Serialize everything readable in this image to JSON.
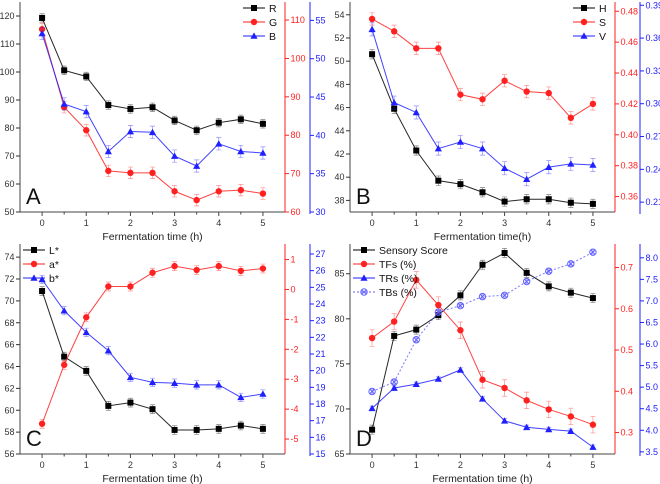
{
  "chart_data": [
    {
      "type": "line",
      "panel_label": "A",
      "xlabel": "Fermentation time (h)",
      "xlim": [
        -0.5,
        5.5
      ],
      "xticks": [
        "0",
        "1",
        "2",
        "3",
        "4",
        "5"
      ],
      "legend": "top-right",
      "axes": {
        "left": {
          "ylim": [
            50,
            125
          ],
          "ticks": [
            "50",
            "60",
            "70",
            "80",
            "90",
            "100",
            "110",
            "120"
          ],
          "color": "#333333"
        },
        "right": {
          "ylim": [
            60,
            114.7
          ],
          "ticks": [
            "60",
            "70",
            "80",
            "90",
            "100",
            "110"
          ],
          "color": "#ff2020"
        },
        "right2": {
          "ylim": [
            30,
            57.4
          ],
          "ticks": [
            "30",
            "35",
            "40",
            "45",
            "50",
            "55"
          ],
          "color": "#2020ff"
        }
      },
      "x": [
        0,
        0.5,
        1,
        1.5,
        2,
        2.5,
        3,
        3.5,
        4,
        4.5,
        5
      ],
      "series": [
        {
          "name": "R",
          "axis": "left",
          "color": "#000000",
          "marker": "square",
          "err": 1.5,
          "values": [
            119.3,
            100.6,
            98.4,
            88.2,
            86.8,
            87.4,
            82.7,
            79.2,
            81.9,
            83.1,
            81.5
          ]
        },
        {
          "name": "G",
          "axis": "right",
          "color": "#ff2020",
          "marker": "circle",
          "err": 1.5,
          "values": [
            107.6,
            87.3,
            81.3,
            70.7,
            70.2,
            70.2,
            65.4,
            63.1,
            65.4,
            65.7,
            64.8
          ]
        },
        {
          "name": "B",
          "axis": "right2",
          "color": "#2020ff",
          "marker": "triangle",
          "err": 0.8,
          "values": [
            53.3,
            44.1,
            43.1,
            37.9,
            40.5,
            40.4,
            37.3,
            36.0,
            38.9,
            37.9,
            37.7
          ]
        }
      ]
    },
    {
      "type": "line",
      "panel_label": "B",
      "xlabel": "Fermentation time(h)",
      "xlim": [
        -0.5,
        5.5
      ],
      "xticks": [
        "0",
        "1",
        "2",
        "3",
        "4",
        "5"
      ],
      "legend": "top-right",
      "axes": {
        "left": {
          "ylim": [
            37,
            55.1
          ],
          "ticks": [
            "38",
            "40",
            "42",
            "44",
            "46",
            "48",
            "50",
            "52",
            "54"
          ],
          "color": "#333333"
        },
        "right": {
          "ylim": [
            0.35,
            0.486
          ],
          "ticks": [
            "0.36",
            "0.38",
            "0.40",
            "0.42",
            "0.44",
            "0.46",
            "0.48"
          ],
          "color": "#ff2020"
        },
        "right2": {
          "ylim": [
            0.201,
            0.393
          ],
          "ticks": [
            "0.21",
            "0.24",
            "0.27",
            "0.30",
            "0.33",
            "0.36",
            "0.39"
          ],
          "color": "#2020ff"
        }
      },
      "x": [
        0,
        0.5,
        1,
        1.5,
        2,
        2.5,
        3,
        3.5,
        4,
        4.5,
        5
      ],
      "series": [
        {
          "name": "H",
          "axis": "left",
          "color": "#000000",
          "marker": "square",
          "err": 0.4,
          "values": [
            50.6,
            45.9,
            42.3,
            39.7,
            39.4,
            38.7,
            37.9,
            38.1,
            38.1,
            37.8,
            37.7
          ]
        },
        {
          "name": "S",
          "axis": "right",
          "color": "#ff2020",
          "marker": "circle",
          "err": 0.004,
          "values": [
            0.475,
            0.467,
            0.456,
            0.456,
            0.426,
            0.423,
            0.435,
            0.428,
            0.427,
            0.411,
            0.42
          ]
        },
        {
          "name": "V",
          "axis": "right2",
          "color": "#2020ff",
          "marker": "triangle",
          "err": 0.006,
          "values": [
            0.368,
            0.301,
            0.292,
            0.259,
            0.265,
            0.259,
            0.241,
            0.231,
            0.242,
            0.245,
            0.244
          ]
        }
      ]
    },
    {
      "type": "line",
      "panel_label": "C",
      "xlabel": "Fermentation time (h)",
      "xlim": [
        -0.5,
        5.5
      ],
      "xticks": [
        "0",
        "1",
        "2",
        "3",
        "4",
        "5"
      ],
      "legend": "top-left",
      "axes": {
        "left": {
          "ylim": [
            56,
            75.2
          ],
          "ticks": [
            "56",
            "58",
            "60",
            "62",
            "64",
            "66",
            "68",
            "70",
            "72",
            "74"
          ],
          "color": "#333333"
        },
        "right": {
          "ylim": [
            -5.5,
            1.52
          ],
          "ticks": [
            "-5",
            "-4",
            "-3",
            "-2",
            "-1",
            "0",
            "1"
          ],
          "color": "#ff2020"
        },
        "right2": {
          "ylim": [
            15,
            27.6
          ],
          "ticks": [
            "15",
            "16",
            "17",
            "18",
            "19",
            "20",
            "21",
            "22",
            "23",
            "24",
            "25",
            "26",
            "27"
          ],
          "color": "#2020ff"
        }
      },
      "x": [
        0,
        0.5,
        1,
        1.5,
        2,
        2.5,
        3,
        3.5,
        4,
        4.5,
        5
      ],
      "series": [
        {
          "name": "L*",
          "axis": "left",
          "color": "#000000",
          "marker": "square",
          "err": 0.4,
          "values": [
            70.9,
            64.9,
            63.6,
            60.4,
            60.7,
            60.1,
            58.2,
            58.2,
            58.3,
            58.6,
            58.3
          ]
        },
        {
          "name": "a*",
          "axis": "right",
          "color": "#ff2020",
          "marker": "circle",
          "err": 0.15,
          "values": [
            -4.49,
            -2.52,
            -0.93,
            0.1,
            0.1,
            0.56,
            0.78,
            0.65,
            0.78,
            0.62,
            0.7
          ]
        },
        {
          "name": "b*",
          "axis": "right2",
          "color": "#2020ff",
          "marker": "triangle",
          "err": 0.25,
          "values": [
            25.47,
            23.6,
            22.3,
            21.2,
            19.6,
            19.3,
            19.25,
            19.15,
            19.15,
            18.4,
            18.6
          ]
        }
      ]
    },
    {
      "type": "line",
      "panel_label": "D",
      "xlabel": "Fermentation time (h)",
      "xlim": [
        -0.5,
        5.5
      ],
      "xticks": [
        "0",
        "1",
        "2",
        "3",
        "4",
        "5"
      ],
      "legend": "top-left",
      "axes": {
        "left": {
          "ylim": [
            65,
            88.3
          ],
          "ticks": [
            "65",
            "70",
            "75",
            "80",
            "85"
          ],
          "color": "#333333"
        },
        "right": {
          "ylim": [
            0.248,
            0.757
          ],
          "ticks": [
            "0.3",
            "0.4",
            "0.5",
            "0.6",
            "0.7"
          ],
          "color": "#ff2020"
        },
        "right2": {
          "ylim": [
            3.45,
            8.32
          ],
          "ticks": [
            "3.5",
            "4.0",
            "4.5",
            "5.0",
            "5.5",
            "6.0",
            "6.5",
            "7.0",
            "7.5",
            "8.0"
          ],
          "color": "#2020ff"
        }
      },
      "x": [
        0,
        0.5,
        1,
        1.5,
        2,
        2.5,
        3,
        3.5,
        4,
        4.5,
        5
      ],
      "series": [
        {
          "name": "Sensory Score",
          "axis": "left",
          "color": "#000000",
          "marker": "square",
          "err": 0.5,
          "values": [
            67.7,
            78.1,
            78.8,
            80.4,
            82.6,
            86.0,
            87.3,
            85.1,
            83.6,
            82.9,
            82.3
          ]
        },
        {
          "name": "TFs (%)",
          "axis": "right",
          "color": "#ff2020",
          "marker": "circle",
          "err": 0.02,
          "values": [
            0.529,
            0.569,
            0.67,
            0.609,
            0.548,
            0.428,
            0.408,
            0.378,
            0.356,
            0.339,
            0.319
          ]
        },
        {
          "name": "TRs (%)",
          "axis": "right2",
          "color": "#2020ff",
          "marker": "triangle",
          "err": 0.05,
          "values": [
            4.51,
            4.98,
            5.07,
            5.19,
            5.4,
            4.73,
            4.22,
            4.07,
            4.02,
            3.98,
            3.61
          ]
        },
        {
          "name": "TBs (%)",
          "axis": "right2",
          "color": "#6060ff",
          "marker": "xcircle",
          "dashed": true,
          "err": 0.05,
          "values": [
            4.9,
            5.12,
            6.1,
            6.74,
            6.89,
            7.1,
            7.13,
            7.45,
            7.69,
            7.86,
            8.13
          ]
        }
      ]
    }
  ]
}
